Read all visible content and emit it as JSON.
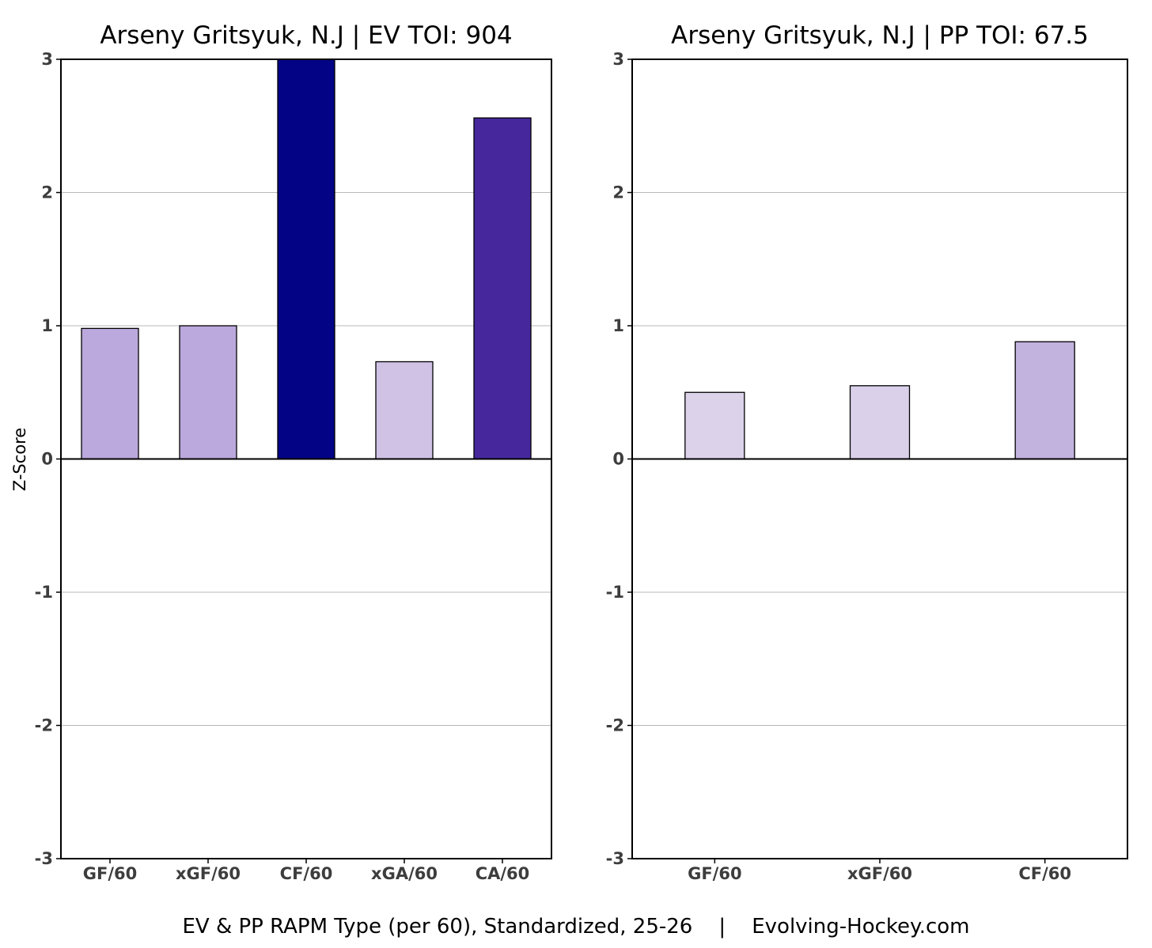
{
  "caption": "EV & PP RAPM Type (per 60), Standardized, 25-26    |    Evolving-Hockey.com",
  "chart_data": [
    {
      "type": "bar",
      "title": "Arseny Gritsyuk, N.J  |  EV TOI: 904",
      "xlabel": "",
      "ylabel": "Z-Score",
      "ylim": [
        -3,
        3
      ],
      "yticks": [
        "3",
        "2",
        "1",
        "0",
        "-1",
        "-2",
        "-3"
      ],
      "grid": true,
      "categories": [
        "GF/60",
        "xGF/60",
        "CF/60",
        "xGA/60",
        "CA/60"
      ],
      "values": [
        0.98,
        1.0,
        3.0,
        0.73,
        2.56
      ],
      "colors": [
        "#bba8dc",
        "#bba8dc",
        "#020385",
        "#cfc2e5",
        "#46289c"
      ]
    },
    {
      "type": "bar",
      "title": "Arseny Gritsyuk, N.J  |  PP TOI: 67.5",
      "xlabel": "",
      "ylabel": "",
      "ylim": [
        -3,
        3
      ],
      "yticks": [
        "3",
        "2",
        "1",
        "0",
        "-1",
        "-2",
        "-3"
      ],
      "grid": true,
      "categories": [
        "GF/60",
        "xGF/60",
        "CF/60"
      ],
      "values": [
        0.5,
        0.55,
        0.88
      ],
      "colors": [
        "#dcd3eb",
        "#dad0ea",
        "#c2b2de"
      ]
    }
  ]
}
